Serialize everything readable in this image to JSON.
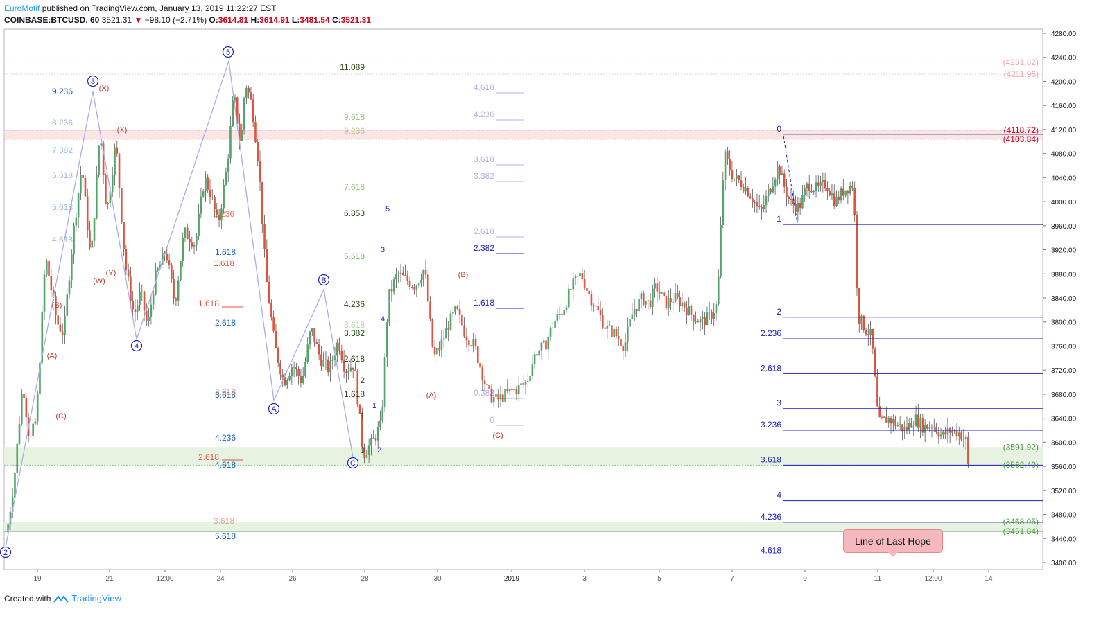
{
  "header": {
    "author": "EuroMotif",
    "published_text": "published on TradingView.com, January 13, 2019 11:22:27 EST",
    "symbol": "COINBASE:BTCUSD, 60",
    "last": "3521.31",
    "change": "−98.10 (−2.71%)",
    "o_label": "O:",
    "o_val": "3614.81",
    "h_label": "H:",
    "h_val": "3614.91",
    "l_label": "L:",
    "l_val": "3481.54",
    "c_label": "C:",
    "c_val": "3521.31"
  },
  "footer": {
    "created_with": "Created with",
    "brand": "TradingView"
  },
  "callout": {
    "text": "Line of Last Hope"
  },
  "colors": {
    "up": "#53a46a",
    "down": "#e0533f",
    "fib_blue": "#1d1fbf",
    "fib_red": "#d0021b",
    "zone_green": "#e7f3e1",
    "zone_red": "#f8d3d3",
    "wave_line": "#a8aee8"
  },
  "chart_data": {
    "type": "candlestick",
    "title": "COINBASE:BTCUSD, 60",
    "ylim": [
      3390,
      4290
    ],
    "y_ticks": [
      4280,
      4240,
      4200,
      4160,
      4120,
      4080,
      4040,
      4000,
      3960,
      3920,
      3880,
      3840,
      3800,
      3760,
      3720,
      3680,
      3640,
      3600,
      3560,
      3520,
      3480,
      3440,
      3400
    ],
    "x_ticks": [
      "19",
      "21",
      "12:00",
      "24",
      "26",
      "28",
      "30",
      "2019",
      "3",
      "5",
      "7",
      "9",
      "11",
      "12:00",
      "14"
    ],
    "price_path": [
      [
        0,
        3450
      ],
      [
        6,
        3530
      ],
      [
        14,
        3700
      ],
      [
        20,
        3600
      ],
      [
        26,
        3640
      ],
      [
        34,
        3910
      ],
      [
        44,
        3800
      ],
      [
        50,
        3780
      ],
      [
        58,
        3940
      ],
      [
        66,
        4060
      ],
      [
        74,
        3900
      ],
      [
        82,
        4120
      ],
      [
        88,
        3980
      ],
      [
        96,
        4100
      ],
      [
        104,
        3900
      ],
      [
        112,
        3810
      ],
      [
        118,
        3850
      ],
      [
        124,
        3790
      ],
      [
        130,
        3870
      ],
      [
        140,
        3920
      ],
      [
        148,
        3830
      ],
      [
        156,
        3950
      ],
      [
        166,
        3930
      ],
      [
        174,
        4040
      ],
      [
        180,
        4010
      ],
      [
        186,
        3960
      ],
      [
        194,
        4060
      ],
      [
        200,
        4180
      ],
      [
        206,
        4090
      ],
      [
        210,
        4200
      ],
      [
        216,
        4160
      ],
      [
        222,
        4060
      ],
      [
        228,
        3880
      ],
      [
        236,
        3760
      ],
      [
        244,
        3700
      ],
      [
        252,
        3730
      ],
      [
        260,
        3700
      ],
      [
        268,
        3790
      ],
      [
        276,
        3740
      ],
      [
        284,
        3720
      ],
      [
        292,
        3770
      ],
      [
        298,
        3720
      ],
      [
        306,
        3730
      ],
      [
        314,
        3580
      ],
      [
        322,
        3600
      ],
      [
        330,
        3630
      ],
      [
        336,
        3840
      ],
      [
        344,
        3880
      ],
      [
        352,
        3870
      ],
      [
        360,
        3860
      ],
      [
        368,
        3890
      ],
      [
        376,
        3740
      ],
      [
        382,
        3760
      ],
      [
        390,
        3800
      ],
      [
        396,
        3820
      ],
      [
        404,
        3780
      ],
      [
        412,
        3760
      ],
      [
        418,
        3720
      ],
      [
        424,
        3680
      ],
      [
        432,
        3670
      ],
      [
        440,
        3680
      ],
      [
        450,
        3690
      ],
      [
        458,
        3700
      ],
      [
        466,
        3750
      ],
      [
        474,
        3760
      ],
      [
        482,
        3800
      ],
      [
        490,
        3820
      ],
      [
        498,
        3860
      ],
      [
        506,
        3880
      ],
      [
        512,
        3850
      ],
      [
        520,
        3820
      ],
      [
        528,
        3790
      ],
      [
        536,
        3780
      ],
      [
        544,
        3760
      ],
      [
        552,
        3820
      ],
      [
        560,
        3840
      ],
      [
        566,
        3830
      ],
      [
        572,
        3860
      ],
      [
        580,
        3830
      ],
      [
        588,
        3840
      ],
      [
        596,
        3830
      ],
      [
        604,
        3810
      ],
      [
        612,
        3800
      ],
      [
        620,
        3810
      ],
      [
        626,
        3830
      ],
      [
        632,
        4080
      ],
      [
        640,
        4040
      ],
      [
        648,
        4030
      ],
      [
        656,
        4010
      ],
      [
        664,
        3980
      ],
      [
        672,
        4020
      ],
      [
        680,
        4060
      ],
      [
        684,
        4030
      ],
      [
        690,
        4000
      ],
      [
        698,
        3990
      ],
      [
        706,
        4030
      ],
      [
        714,
        4020
      ],
      [
        722,
        4030
      ],
      [
        730,
        4000
      ],
      [
        738,
        4020
      ],
      [
        746,
        4030
      ],
      [
        750,
        3810
      ],
      [
        756,
        3790
      ],
      [
        762,
        3775
      ],
      [
        768,
        3630
      ],
      [
        776,
        3640
      ],
      [
        784,
        3630
      ],
      [
        792,
        3620
      ],
      [
        800,
        3640
      ],
      [
        808,
        3625
      ],
      [
        816,
        3630
      ],
      [
        824,
        3610
      ],
      [
        832,
        3620
      ],
      [
        840,
        3615
      ],
      [
        846,
        3600
      ],
      [
        848,
        3521
      ]
    ],
    "price_path_x_unit": "hourly bar index (approximate)",
    "waves": [
      {
        "name": "(2)",
        "label": "2",
        "color": "#1d1fbf"
      },
      {
        "name": "(3)",
        "label": "3",
        "color": "#1d1fbf"
      },
      {
        "name": "(4)",
        "label": "4",
        "color": "#1d1fbf"
      },
      {
        "name": "(5)",
        "label": "5",
        "color": "#1d1fbf"
      },
      {
        "name": "A",
        "label": "A",
        "color": "#1d1fbf"
      },
      {
        "name": "B",
        "label": "B",
        "color": "#1d1fbf"
      },
      {
        "name": "C",
        "label": "C",
        "color": "#1d1fbf"
      }
    ],
    "fib_right": [
      {
        "label": "0",
        "price": 4112
      },
      {
        "label": "1",
        "price": 3962
      },
      {
        "label": "2",
        "price": 3808
      },
      {
        "label": "2.236",
        "price": 3772
      },
      {
        "label": "2.618",
        "price": 3714
      },
      {
        "label": "3",
        "price": 3656
      },
      {
        "label": "3.236",
        "price": 3620
      },
      {
        "label": "3.618",
        "price": 3562
      },
      {
        "label": "4",
        "price": 3503
      },
      {
        "label": "4.236",
        "price": 3467
      },
      {
        "label": "4.618",
        "price": 3411
      }
    ],
    "price_boxes_red": [
      "(4231.82)",
      "(4211.96)",
      "(4118.72)",
      "(4103.84)"
    ],
    "price_boxes_green": [
      "(3591.92)",
      "(3562.40)",
      "(3468.05)",
      "(3451.84)"
    ],
    "fib_left_blue": [
      "9.236",
      "8.236",
      "7.382",
      "6.618",
      "5.618",
      "4.618",
      "1.618",
      "2.618",
      "3.618",
      "4.236",
      "4.618",
      "5.618"
    ],
    "fib_left_red": [
      "1.236",
      "1.618",
      "1.618",
      "2.618",
      "2.618",
      "3.618"
    ],
    "fib_mid_green": [
      "11.089",
      "9.618",
      "9.236",
      "7.618",
      "6.853",
      "5.618",
      "4.236",
      "3.618",
      "3.382",
      "2.618",
      "2",
      "1.618",
      "1",
      "0"
    ],
    "fib_mid_blue": [
      "4.618",
      "4.236",
      "3.618",
      "3.382",
      "2.618",
      "2.382",
      "1.618",
      "0.382",
      "0"
    ],
    "small_labels": [
      "(X)",
      "(X)",
      "(W)",
      "(Y)",
      "(A)",
      "(B)",
      "(C)",
      "(A)",
      "(B)",
      "(C)",
      "1",
      "2",
      "3",
      "4",
      "5"
    ]
  }
}
